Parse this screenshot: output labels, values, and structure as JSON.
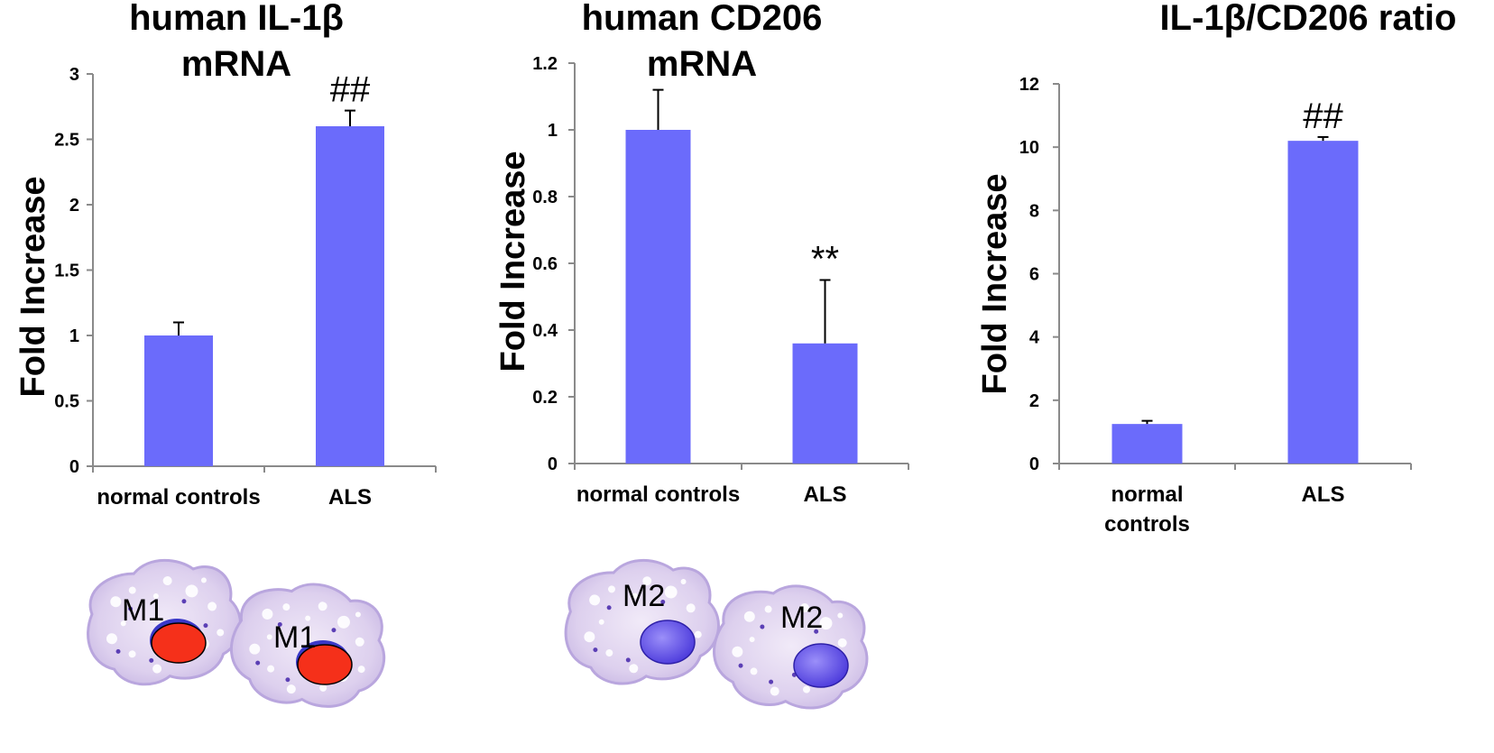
{
  "chart_data": [
    {
      "type": "bar",
      "title": "human IL-1β mRNA",
      "ylabel": "Fold  Increase",
      "xlabel": "",
      "categories": [
        "normal controls",
        "ALS"
      ],
      "values": [
        1.0,
        2.6
      ],
      "errors": [
        0.1,
        0.12
      ],
      "annotations": [
        "",
        "##"
      ],
      "ylim": [
        0,
        3
      ],
      "yticks": [
        "0",
        "0.5",
        "1",
        "1.5",
        "2",
        "2.5",
        "3"
      ],
      "ytick_values": [
        0,
        0.5,
        1,
        1.5,
        2,
        2.5,
        3
      ],
      "bar_color": "#6b6bfb",
      "grid": false
    },
    {
      "type": "bar",
      "title": "human CD206 mRNA",
      "ylabel": "Fold  Increase",
      "xlabel": "",
      "categories": [
        "normal controls",
        "ALS"
      ],
      "values": [
        1.0,
        0.36
      ],
      "errors": [
        0.12,
        0.19
      ],
      "annotations": [
        "",
        "**"
      ],
      "ylim": [
        0,
        1.2
      ],
      "yticks": [
        "0",
        "0.2",
        "0.4",
        "0.6",
        "0.8",
        "1",
        "1.2"
      ],
      "ytick_values": [
        0,
        0.2,
        0.4,
        0.6,
        0.8,
        1.0,
        1.2
      ],
      "bar_color": "#6b6bfb",
      "grid": false
    },
    {
      "type": "bar",
      "title": "IL-1β/CD206 ratio",
      "ylabel": "Fold  Increase",
      "xlabel": "",
      "categories": [
        "normal controls",
        "ALS"
      ],
      "values": [
        1.25,
        10.2
      ],
      "errors": [
        0.1,
        0.12
      ],
      "annotations": [
        "",
        "##"
      ],
      "ylim": [
        0,
        12
      ],
      "yticks": [
        "0",
        "2",
        "4",
        "6",
        "8",
        "10",
        "12"
      ],
      "ytick_values": [
        0,
        2,
        4,
        6,
        8,
        10,
        12
      ],
      "bar_color": "#6b6bfb",
      "grid": false
    }
  ],
  "cells": [
    {
      "label": "M1",
      "nucleus_color": "#f5301a"
    },
    {
      "label": "M1",
      "nucleus_color": "#f5301a"
    },
    {
      "label": "M2",
      "nucleus_color": "#5a4cf0"
    },
    {
      "label": "M2",
      "nucleus_color": "#5a4cf0"
    }
  ]
}
